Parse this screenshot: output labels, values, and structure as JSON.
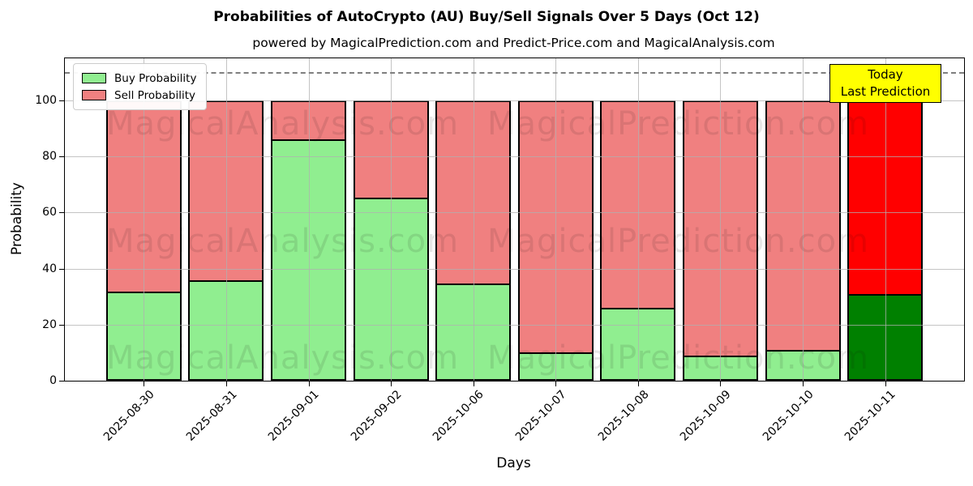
{
  "chart_data": {
    "type": "bar",
    "stacked": true,
    "title": "Probabilities of AutoCrypto (AU) Buy/Sell Signals Over 5 Days (Oct 12)",
    "subtitle": "powered by MagicalPrediction.com and Predict-Price.com and MagicalAnalysis.com",
    "xlabel": "Days",
    "ylabel": "Probability",
    "categories": [
      "2025-08-30",
      "2025-08-31",
      "2025-09-01",
      "2025-09-02",
      "2025-10-06",
      "2025-10-07",
      "2025-10-08",
      "2025-10-09",
      "2025-10-10",
      "2025-10-11"
    ],
    "series": [
      {
        "name": "Buy Probability",
        "color": "#90EE90",
        "values": [
          31,
          35,
          86,
          65,
          34,
          9,
          25,
          8,
          10,
          30
        ]
      },
      {
        "name": "Sell Probability",
        "color": "#F08080",
        "values": [
          69,
          65,
          14,
          35,
          66,
          91,
          75,
          92,
          90,
          70
        ]
      }
    ],
    "highlight_last_bar": {
      "buy_color": "#008000",
      "sell_color": "#FF0000"
    },
    "ylim": [
      0,
      115
    ],
    "yticks": [
      0,
      20,
      40,
      60,
      80,
      100
    ],
    "dashed_line_y": 110,
    "grid": true,
    "legend_position": "upper left"
  },
  "annotation_box": {
    "lines": [
      "Today",
      "Last Prediction"
    ],
    "bg_color": "#FFFF00"
  },
  "watermarks": {
    "left": "MagicalAnalysis.com",
    "right": "MagicalPrediction.com"
  },
  "colors": {
    "bar_edge": "#000000",
    "grid": "#B0B0B0",
    "dashed_line": "#7F7F7F",
    "axis": "#000000"
  }
}
